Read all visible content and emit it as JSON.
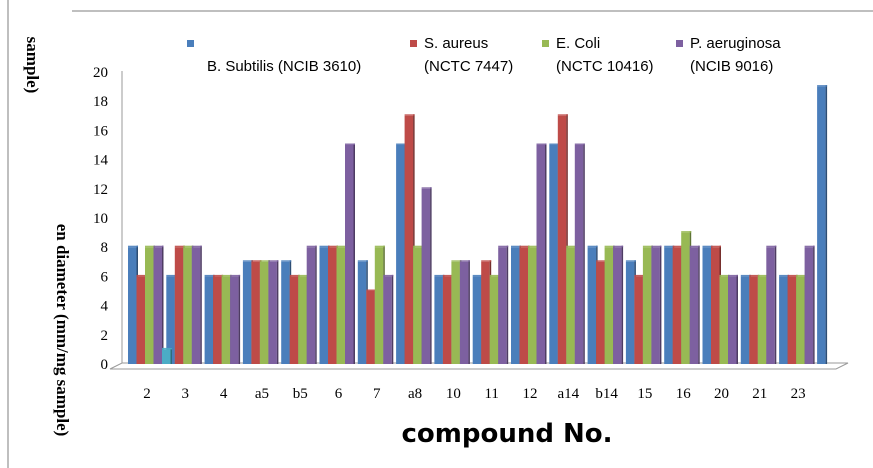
{
  "chart_data": {
    "type": "bar",
    "title": "",
    "xlabel": "compound No.",
    "ylabel": "en diameter (mm/mg sample)",
    "ylabel_fragment_top": "sample)",
    "ylim": [
      0,
      20
    ],
    "y_ticks": [
      "0",
      "2",
      "4",
      "6",
      "8",
      "10",
      "12",
      "14",
      "16",
      "18",
      "20"
    ],
    "grid": false,
    "legend_position": "top",
    "categories": [
      "2",
      "3",
      "4",
      "a5",
      "b5",
      "6",
      "7",
      "a8",
      "10",
      "11",
      "12",
      "a14",
      "b14",
      "15",
      "16",
      "20",
      "21",
      "23"
    ],
    "series": [
      {
        "name": "B. Subtilis (NCIB 3610)",
        "color": "#4a7ebb",
        "values": [
          8,
          6,
          6,
          7,
          7,
          8,
          7,
          15,
          6,
          6,
          8,
          15,
          8,
          7,
          8,
          8,
          6,
          6
        ]
      },
      {
        "name": "S. aureus (NCTC 7447)",
        "color": "#be4b48",
        "values": [
          6,
          8,
          6,
          7,
          6,
          8,
          5,
          17,
          6,
          7,
          8,
          17,
          7,
          6,
          8,
          8,
          6,
          6
        ]
      },
      {
        "name": "E. Coli (NCTC 10416)",
        "color": "#98b954",
        "values": [
          8,
          8,
          6,
          7,
          6,
          8,
          8,
          8,
          7,
          6,
          8,
          8,
          8,
          8,
          9,
          6,
          6,
          6
        ]
      },
      {
        "name": "P. aeruginosa (NCIB 9016)",
        "color": "#7d60a0",
        "values": [
          8,
          8,
          6,
          7,
          8,
          15,
          6,
          12,
          7,
          8,
          15,
          15,
          8,
          8,
          8,
          6,
          8,
          8
        ]
      }
    ],
    "extra_bars": [
      {
        "after_category": "2",
        "color": "#4bacc6",
        "value": 1
      },
      {
        "after_category": "23",
        "color": "#4a7ebb",
        "value": 19
      }
    ],
    "legend": [
      {
        "line1": "",
        "line2": "B. Subtilis (NCIB 3610)",
        "color": "#4a7ebb"
      },
      {
        "line1": "S. aureus",
        "line2": "(NCTC 7447)",
        "color": "#be4b48"
      },
      {
        "line1": "E. Coli",
        "line2": "(NCTC 10416)",
        "color": "#98b954"
      },
      {
        "line1": "P. aeruginosa",
        "line2": "(NCIB 9016)",
        "color": "#7d60a0"
      }
    ]
  }
}
